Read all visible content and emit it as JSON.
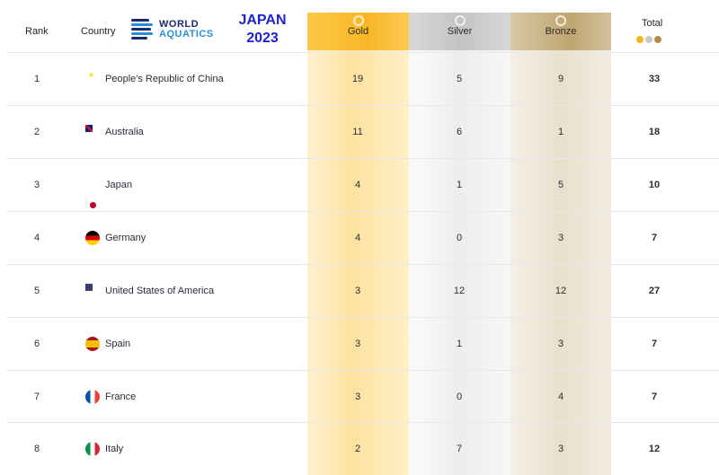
{
  "header": {
    "rank_label": "Rank",
    "country_label": "Country",
    "logo_line1": "WORLD",
    "logo_line2": "AQUATICS",
    "event_line1": "JAPAN",
    "event_line2": "2023",
    "gold_label": "Gold",
    "silver_label": "Silver",
    "bronze_label": "Bronze",
    "total_label": "Total"
  },
  "colors": {
    "gold": "#f8b626",
    "silver": "#c4c4c4",
    "bronze": "#bfa570",
    "event_title": "#1f24c9"
  },
  "rows": [
    {
      "rank": "1",
      "flag": "china-flag-icon",
      "country": "People's Republic of China",
      "gold": "19",
      "silver": "5",
      "bronze": "9",
      "total": "33"
    },
    {
      "rank": "2",
      "flag": "australia-flag-icon",
      "country": "Australia",
      "gold": "11",
      "silver": "6",
      "bronze": "1",
      "total": "18"
    },
    {
      "rank": "3",
      "flag": "japan-flag-icon",
      "country": "Japan",
      "gold": "4",
      "silver": "1",
      "bronze": "5",
      "total": "10"
    },
    {
      "rank": "4",
      "flag": "germany-flag-icon",
      "country": "Germany",
      "gold": "4",
      "silver": "0",
      "bronze": "3",
      "total": "7"
    },
    {
      "rank": "5",
      "flag": "usa-flag-icon",
      "country": "United States of America",
      "gold": "3",
      "silver": "12",
      "bronze": "12",
      "total": "27"
    },
    {
      "rank": "6",
      "flag": "spain-flag-icon",
      "country": "Spain",
      "gold": "3",
      "silver": "1",
      "bronze": "3",
      "total": "7"
    },
    {
      "rank": "7",
      "flag": "france-flag-icon",
      "country": "France",
      "gold": "3",
      "silver": "0",
      "bronze": "4",
      "total": "7"
    },
    {
      "rank": "8",
      "flag": "italy-flag-icon",
      "country": "Italy",
      "gold": "2",
      "silver": "7",
      "bronze": "3",
      "total": "12"
    }
  ]
}
